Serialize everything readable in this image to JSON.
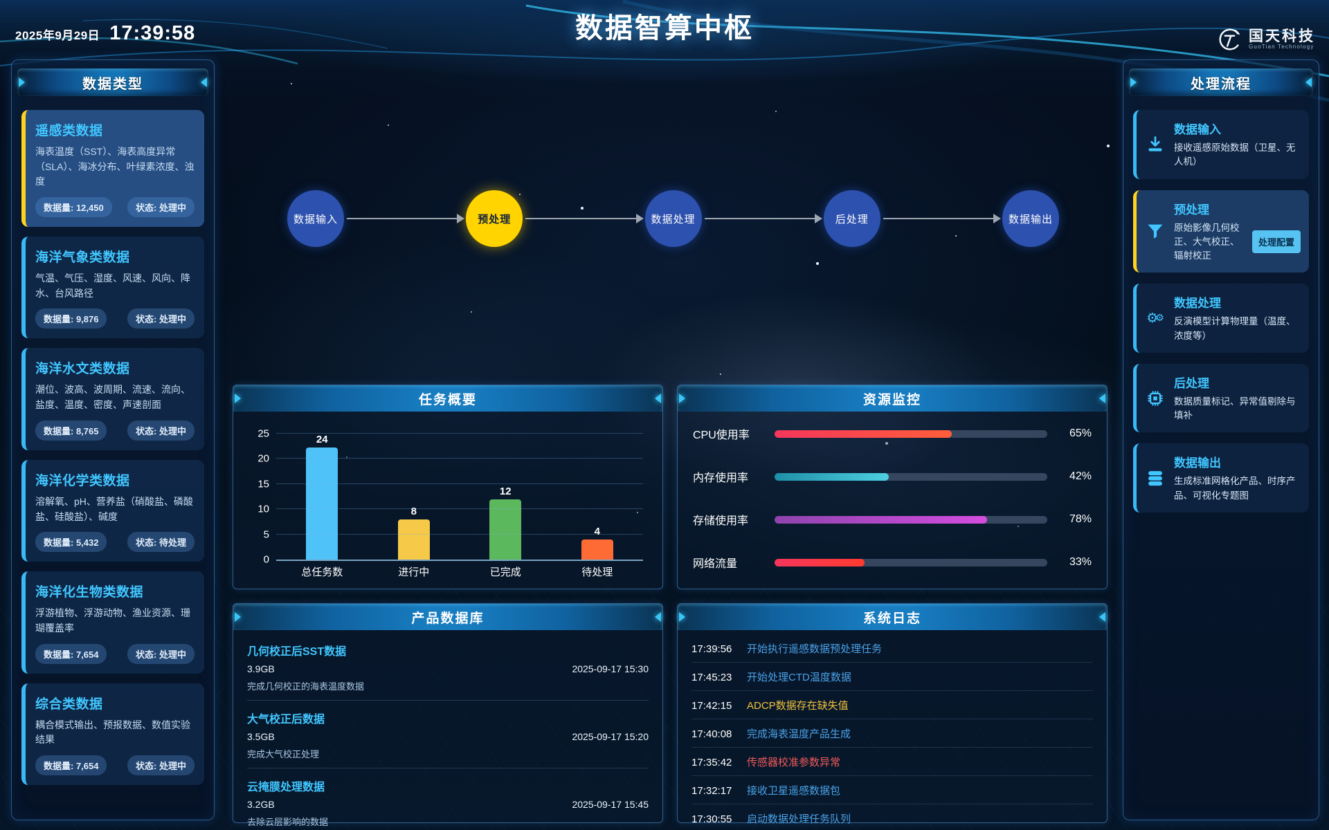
{
  "header": {
    "date": "2025年9月29日",
    "time": "17:39:58",
    "title": "数据智算中枢",
    "logo_cn": "国天科技",
    "logo_en": "GuoTian Technology"
  },
  "left_panel": {
    "title": "数据类型",
    "cards": [
      {
        "name": "遥感类数据",
        "desc": "海表温度（SST）、海表高度异常（SLA）、海冰分布、叶绿素浓度、浊度",
        "volume": "数据量: 12,450",
        "status": "状态: 处理中",
        "active": true
      },
      {
        "name": "海洋气象类数据",
        "desc": "气温、气压、湿度、风速、风向、降水、台风路径",
        "volume": "数据量: 9,876",
        "status": "状态: 处理中",
        "active": false
      },
      {
        "name": "海洋水文类数据",
        "desc": "潮位、波高、波周期、流速、流向、盐度、温度、密度、声速剖面",
        "volume": "数据量: 8,765",
        "status": "状态: 处理中",
        "active": false
      },
      {
        "name": "海洋化学类数据",
        "desc": "溶解氧、pH、营养盐（硝酸盐、磷酸盐、硅酸盐）、碱度",
        "volume": "数据量: 5,432",
        "status": "状态: 待处理",
        "active": false
      },
      {
        "name": "海洋化生物类数据",
        "desc": "浮游植物、浮游动物、渔业资源、珊瑚覆盖率",
        "volume": "数据量: 7,654",
        "status": "状态: 处理中",
        "active": false
      },
      {
        "name": "综合类数据",
        "desc": "耦合模式输出、预报数据、数值实验结果",
        "volume": "数据量: 7,654",
        "status": "状态: 处理中",
        "active": false
      }
    ]
  },
  "pipeline": {
    "steps": [
      {
        "label": "数据输入",
        "active": false
      },
      {
        "label": "预处理",
        "active": true
      },
      {
        "label": "数据处理",
        "active": false
      },
      {
        "label": "后处理",
        "active": false
      },
      {
        "label": "数据输出",
        "active": false
      }
    ]
  },
  "task_panel": {
    "title": "任务概要"
  },
  "chart_data": {
    "type": "bar",
    "title": "任务概要",
    "categories": [
      "总任务数",
      "进行中",
      "已完成",
      "待处理"
    ],
    "values": [
      24,
      8,
      12,
      4
    ],
    "colors": [
      "#4fc3f7",
      "#f7c948",
      "#5cb85c",
      "#ff6b35"
    ],
    "xlabel": "",
    "ylabel": "",
    "ylim": [
      0,
      25
    ],
    "yticks": [
      0,
      5,
      10,
      15,
      20,
      25
    ],
    "grid": true,
    "legend": false
  },
  "resource_panel": {
    "title": "资源监控",
    "meters": [
      {
        "label": "CPU使用率",
        "percent": 65,
        "value": "65%",
        "color_from": "#f5365c",
        "color_to": "#ff5e3a"
      },
      {
        "label": "内存使用率",
        "percent": 42,
        "value": "42%",
        "color_from": "#1f8fa8",
        "color_to": "#4dd0e1"
      },
      {
        "label": "存储使用率",
        "percent": 78,
        "value": "78%",
        "color_from": "#8e44ad",
        "color_to": "#d44de0"
      },
      {
        "label": "网络流量",
        "percent": 33,
        "value": "33%",
        "color_from": "#f5365c",
        "color_to": "#ff3b30"
      }
    ]
  },
  "product_panel": {
    "title": "产品数据库",
    "items": [
      {
        "name": "几何校正后SST数据",
        "size": "3.9GB",
        "date": "2025-09-17 15:30",
        "desc": "完成几何校正的海表温度数据"
      },
      {
        "name": "大气校正后数据",
        "size": "3.5GB",
        "date": "2025-09-17 15:20",
        "desc": "完成大气校正处理"
      },
      {
        "name": "云掩膜处理数据",
        "size": "3.2GB",
        "date": "2025-09-17 15:45",
        "desc": "去除云层影响的数据"
      }
    ]
  },
  "log_panel": {
    "title": "系统日志",
    "entries": [
      {
        "time": "17:39:56",
        "message": "开始执行遥感数据预处理任务",
        "level": "info"
      },
      {
        "time": "17:45:23",
        "message": "开始处理CTD温度数据",
        "level": "info"
      },
      {
        "time": "17:42:15",
        "message": "ADCP数据存在缺失值",
        "level": "warning"
      },
      {
        "time": "17:40:08",
        "message": "完成海表温度产品生成",
        "level": "info"
      },
      {
        "time": "17:35:42",
        "message": "传感器校准参数异常",
        "level": "error"
      },
      {
        "time": "17:32:17",
        "message": "接收卫星遥感数据包",
        "level": "info"
      },
      {
        "time": "17:30:55",
        "message": "启动数据处理任务队列",
        "level": "info"
      }
    ]
  },
  "right_panel": {
    "title": "处理流程",
    "steps": [
      {
        "title": "数据输入",
        "desc": "接收遥感原始数据（卫星、无人机）",
        "icon": "download-icon",
        "active": false,
        "button": null
      },
      {
        "title": "预处理",
        "desc": "原始影像几何校正、大气校正、辐射校正",
        "icon": "filter-icon",
        "active": true,
        "button": "处理配置"
      },
      {
        "title": "数据处理",
        "desc": "反演模型计算物理量（温度、浓度等）",
        "icon": "gears-icon",
        "active": false,
        "button": null
      },
      {
        "title": "后处理",
        "desc": "数据质量标记、异常值剔除与填补",
        "icon": "chip-icon",
        "active": false,
        "button": null
      },
      {
        "title": "数据输出",
        "desc": "生成标准网格化产品、时序产品、可视化专题图",
        "icon": "database-icon",
        "active": false,
        "button": null
      }
    ]
  },
  "colors": {
    "accent_cyan": "#39c6f7",
    "accent_yellow": "#ffd21f",
    "pipeline_blue": "#2d51ae",
    "pipeline_active": "#ffd400",
    "card_title": "#41c6ff"
  }
}
